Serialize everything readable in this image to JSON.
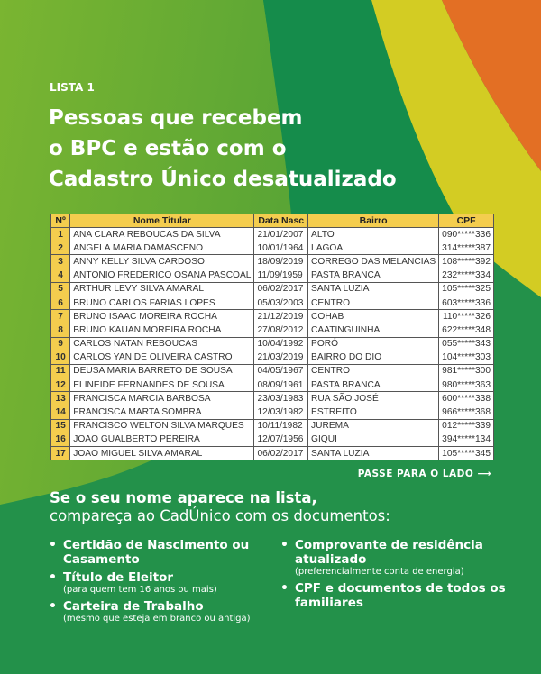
{
  "colors": {
    "light_green": "#7ab531",
    "dark_green": "#158c4b",
    "yellow": "#d3cc23",
    "orange": "#e36f24",
    "header_yellow": "#f4cd4e"
  },
  "kicker": "LISTA 1",
  "title_lines": [
    "Pessoas que recebem",
    "o BPC e estão com o",
    "Cadastro Único desatualizado"
  ],
  "table": {
    "headers": [
      "Nº",
      "Nome Titular",
      "Data Nasc",
      "Bairro",
      "CPF"
    ],
    "rows": [
      [
        "1",
        "ANA CLARA REBOUCAS DA SILVA",
        "21/01/2007",
        "ALTO",
        "090*****336"
      ],
      [
        "2",
        "ANGELA MARIA DAMASCENO",
        "10/01/1964",
        "LAGOA",
        "314*****387"
      ],
      [
        "3",
        "ANNY KELLY SILVA CARDOSO",
        "18/09/2019",
        "CORREGO DAS MELANCIAS",
        "108*****392"
      ],
      [
        "4",
        "ANTONIO FREDERICO OSANA PASCOAL",
        "11/09/1959",
        "PASTA BRANCA",
        "232*****334"
      ],
      [
        "5",
        "ARTHUR LEVY SILVA AMARAL",
        "06/02/2017",
        "SANTA LUZIA",
        "105*****325"
      ],
      [
        "6",
        "BRUNO CARLOS FARIAS LOPES",
        "05/03/2003",
        "CENTRO",
        "603*****336"
      ],
      [
        "7",
        "BRUNO ISAAC MOREIRA ROCHA",
        "21/12/2019",
        "COHAB",
        "110*****326"
      ],
      [
        "8",
        "BRUNO KAUAN MOREIRA ROCHA",
        "27/08/2012",
        "CAATINGUINHA",
        "622*****348"
      ],
      [
        "9",
        "CARLOS NATAN REBOUCAS",
        "10/04/1992",
        "PORÓ",
        "055*****343"
      ],
      [
        "10",
        "CARLOS YAN DE OLIVEIRA CASTRO",
        "21/03/2019",
        "BAIRRO DO DIO",
        "104*****303"
      ],
      [
        "11",
        "DEUSA MARIA BARRETO DE SOUSA",
        "04/05/1967",
        "CENTRO",
        "981*****300"
      ],
      [
        "12",
        "ELINEIDE FERNANDES DE SOUSA",
        "08/09/1961",
        "PASTA BRANCA",
        "980*****363"
      ],
      [
        "13",
        "FRANCISCA MARCIA BARBOSA",
        "23/03/1983",
        "RUA SÃO JOSÉ",
        "600*****338"
      ],
      [
        "14",
        "FRANCISCA MARTA SOMBRA",
        "12/03/1982",
        "ESTREITO",
        "966*****368"
      ],
      [
        "15",
        "FRANCISCO WELTON SILVA MARQUES",
        "10/11/1982",
        "JUREMA",
        "012*****339"
      ],
      [
        "16",
        "JOAO GUALBERTO PEREIRA",
        "12/07/1956",
        "GIQUI",
        "394*****134"
      ],
      [
        "17",
        "JOAO MIGUEL SILVA AMARAL",
        "06/02/2017",
        "SANTA LUZIA",
        "105*****345"
      ]
    ]
  },
  "swipe_label": "PASSE PARA O LADO ⟶",
  "instructions": {
    "heading_bold": "Se o seu nome aparece na lista,",
    "heading_regular": "compareça ao CadÚnico com os documentos:",
    "col1": [
      {
        "title": "Certidão de Nascimento ou Casamento",
        "note": ""
      },
      {
        "title": "Título de Eleitor",
        "note": "(para quem tem 16 anos ou mais)"
      },
      {
        "title": "Carteira de Trabalho",
        "note": "(mesmo que esteja em branco ou antiga)"
      }
    ],
    "col2": [
      {
        "title": "Comprovante de residência atualizado",
        "note": "(preferencialmente conta de energia)"
      },
      {
        "title": "CPF e documentos de todos os familiares",
        "note": ""
      }
    ]
  }
}
